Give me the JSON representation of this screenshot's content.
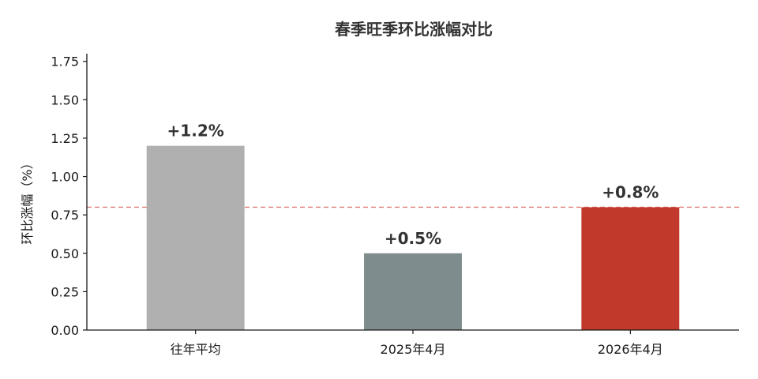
{
  "chart_data": {
    "type": "bar",
    "title": "春季旺季环比涨幅对比",
    "xlabel": "",
    "ylabel": "环比涨幅（%）",
    "categories": [
      "往年平均",
      "2025年4月",
      "2026年4月"
    ],
    "values": [
      1.2,
      0.5,
      0.8
    ],
    "data_labels": [
      "+1.2%",
      "+0.5%",
      "+0.8%"
    ],
    "bar_colors": [
      "#b0b0b0",
      "#7f8c8d",
      "#c0392b"
    ],
    "ylim": [
      0,
      1.8
    ],
    "yticks": [
      0.0,
      0.25,
      0.5,
      0.75,
      1.0,
      1.25,
      1.5,
      1.75
    ],
    "ytick_labels": [
      "0.00",
      "0.25",
      "0.50",
      "0.75",
      "1.00",
      "1.25",
      "1.50",
      "1.75"
    ],
    "reference_line": {
      "value": 0.8,
      "style": "dashed",
      "color": "#e07b7b"
    },
    "grid": false,
    "legend": "none"
  }
}
